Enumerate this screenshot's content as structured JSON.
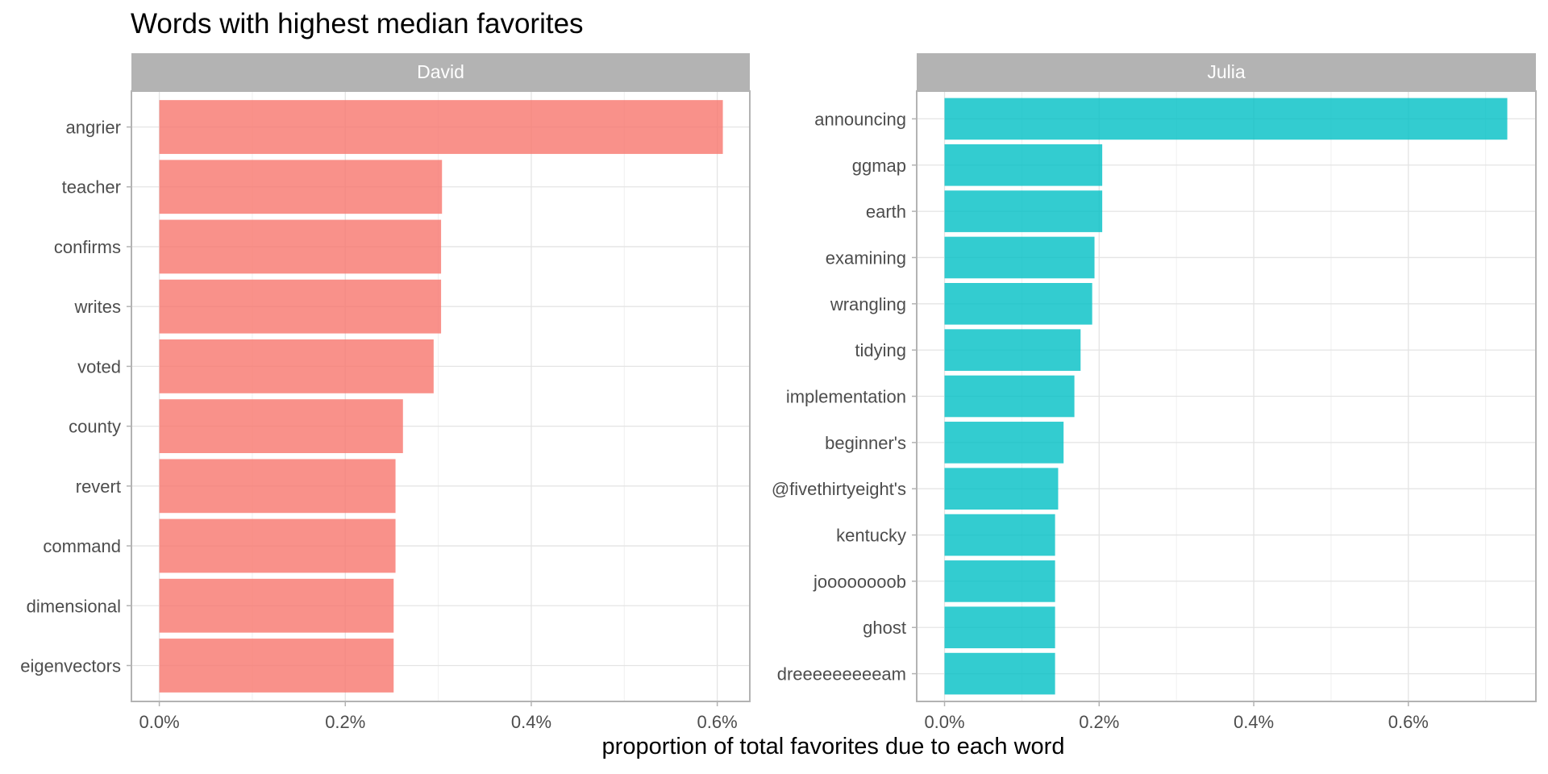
{
  "chart_data": {
    "type": "bar",
    "orientation": "horizontal",
    "title": "Words with highest median favorites",
    "xlabel": "proportion of total favorites due to each word",
    "ylabel": "",
    "grid": true,
    "x_ticks": [
      "0.0%",
      "0.2%",
      "0.4%",
      "0.6%"
    ],
    "facets": [
      {
        "name": "David",
        "color": "#F8766D",
        "xlim": [
          -0.0003,
          0.00635
        ],
        "categories": [
          "angrier",
          "teacher",
          "confirms",
          "writes",
          "voted",
          "county",
          "revert",
          "command",
          "dimensional",
          "eigenvectors"
        ],
        "values": [
          0.00606,
          0.00304,
          0.00303,
          0.00303,
          0.00295,
          0.00262,
          0.00254,
          0.00254,
          0.00252,
          0.00252
        ]
      },
      {
        "name": "Julia",
        "color": "#00BFC4",
        "xlim": [
          -0.00036,
          0.00765
        ],
        "categories": [
          "announcing",
          "ggmap",
          "earth",
          "examining",
          "wrangling",
          "tidying",
          "implementation",
          "beginner's",
          "@fivethirtyeight's",
          "kentucky",
          "joooooooob",
          "ghost",
          "dreeeeeeeeeam"
        ],
        "values": [
          0.00728,
          0.00204,
          0.00204,
          0.00194,
          0.00191,
          0.00176,
          0.00168,
          0.00154,
          0.00147,
          0.00143,
          0.00143,
          0.00143,
          0.00143
        ]
      }
    ]
  }
}
